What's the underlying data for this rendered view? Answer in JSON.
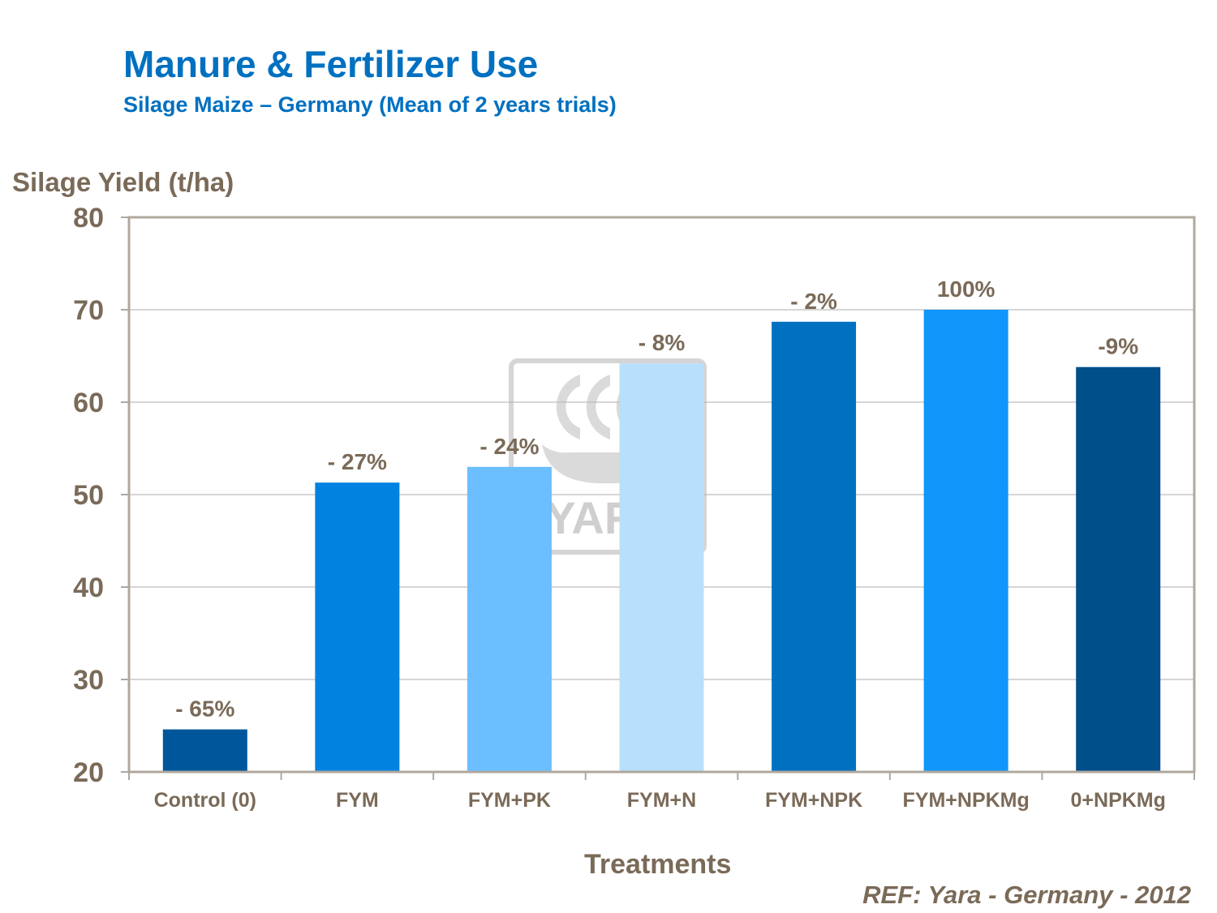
{
  "title": "Manure & Fertilizer Use",
  "subtitle": "Silage Maize – Germany (Mean of 2 years trials)",
  "source": "REF: Yara - Germany - 2012",
  "watermark": {
    "text": "YARA",
    "icon": "yara-viking-ship-logo"
  },
  "colors": {
    "title": "#0070c0",
    "axis_text": "#7a6a58",
    "grid": "#c8c8c8",
    "frame": "#b0a89e"
  },
  "chart_data": {
    "type": "bar",
    "title": "Manure & Fertilizer Use",
    "subtitle": "Silage Maize – Germany (Mean of 2 years trials)",
    "xlabel": "Treatments",
    "ylabel": "Silage Yield (t/ha)",
    "ylim": [
      20,
      80
    ],
    "yticks": [
      20,
      30,
      40,
      50,
      60,
      70,
      80
    ],
    "grid": true,
    "categories": [
      "Control (0)",
      "FYM",
      "FYM+PK",
      "FYM+N",
      "FYM+NPK",
      "FYM+NPKMg",
      "0+NPKMg"
    ],
    "values": [
      24.6,
      51.3,
      53,
      64.2,
      68.7,
      70,
      63.8
    ],
    "data_labels": [
      "- 65%",
      "- 27%",
      "- 24%",
      "- 8%",
      "- 2%",
      "100%",
      "-9%"
    ],
    "bar_colors": [
      "#00569a",
      "#0082e0",
      "#6bbfff",
      "#b8e0fc",
      "#0070c0",
      "#1196fb",
      "#004e8a"
    ]
  }
}
